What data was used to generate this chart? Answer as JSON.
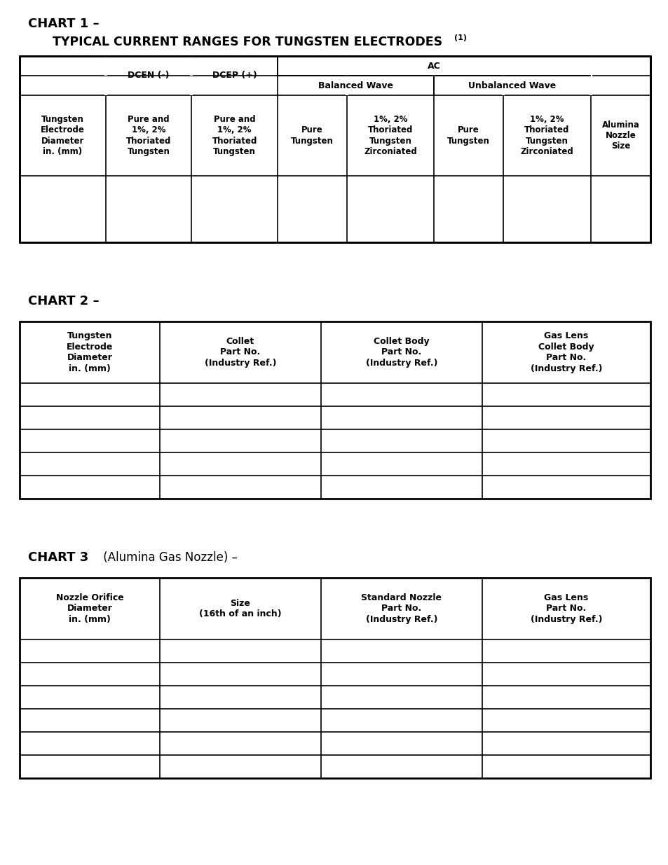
{
  "background_color": "#ffffff",
  "chart1": {
    "title_line1": "CHART 1 –",
    "title_line2": "TYPICAL CURRENT RANGES FOR TUNGSTEN ELECTRODES",
    "title_superscript": "(1)",
    "col_headers_row3": [
      "Tungsten\nElectrode\nDiameter\nin. (mm)",
      "Pure and\n1%, 2%\nThoriated\nTungsten",
      "Pure and\n1%, 2%\nThoriated\nTungsten",
      "Pure\nTungsten",
      "1%, 2%\nThoriated\nTungsten\nZirconiated",
      "Pure\nTungsten",
      "1%, 2%\nThoriated\nTungsten\nZirconiated",
      "Alumina\nNozzle\nSize"
    ],
    "dcen_label": "DCEN (-)",
    "dcep_label": "DCEP (+)",
    "ac_label": "AC",
    "balanced_label": "Balanced Wave",
    "unbalanced_label": "Unbalanced Wave"
  },
  "chart2": {
    "title": "CHART 2 –",
    "col_headers": [
      "Tungsten\nElectrode\nDiameter\nin. (mm)",
      "Collet\nPart No.\n(Industry Ref.)",
      "Collet Body\nPart No.\n(Industry Ref.)",
      "Gas Lens\nCollet Body\nPart No.\n(Industry Ref.)"
    ],
    "data_rows": 5
  },
  "chart3": {
    "title_bold": "CHART 3",
    "title_normal": " (Alumina Gas Nozzle) –",
    "col_headers": [
      "Nozzle Orifice\nDiameter\nin. (mm)",
      "Size\n(16th of an inch)",
      "Standard Nozzle\nPart No.\n(Industry Ref.)",
      "Gas Lens\nPart No.\n(Industry Ref.)"
    ],
    "data_rows": 6
  }
}
